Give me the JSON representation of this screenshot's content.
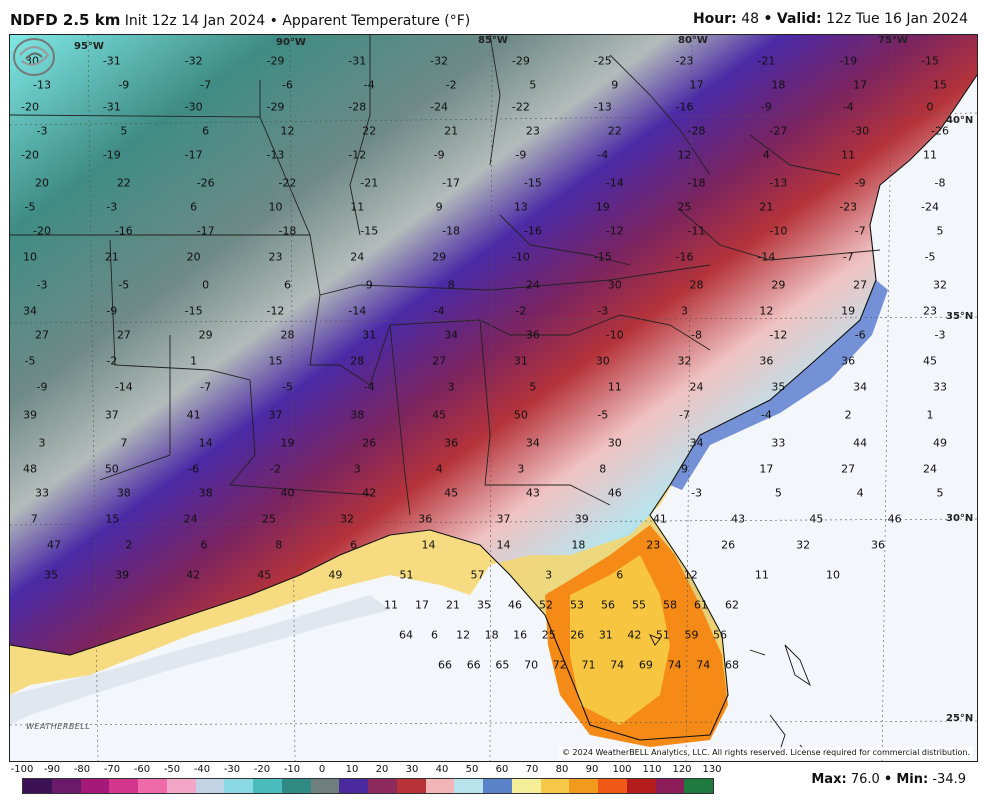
{
  "header": {
    "model": "NDFD 2.5 km",
    "init": "Init 12z 14 Jan 2024",
    "bullet": "•",
    "product": "Apparent Temperature (°F)",
    "hour_label": "Hour:",
    "hour": "48",
    "valid_label": "Valid:",
    "valid": "12z Tue 16 Jan 2024"
  },
  "map": {
    "lon_labels": [
      "95°W",
      "90°W",
      "85°W",
      "80°W",
      "75°W"
    ],
    "lat_labels": [
      "40°N",
      "35°N",
      "30°N",
      "25°N"
    ],
    "copyright": "© 2024 WeatherBELL Analytics, LLC. All rights reserved. License required for commercial distribution.",
    "logo_text": "WEATHERBELL",
    "values": [
      "-30",
      "-31",
      "-32",
      "-29",
      "-31",
      "-32",
      "-29",
      "-25",
      "-23",
      "-21",
      "-19",
      "-15",
      "-13",
      "-9",
      "-7",
      "-6",
      "-4",
      "-2",
      "5",
      "9",
      "17",
      "18",
      "17",
      "15",
      "-20",
      "-31",
      "-30",
      "-29",
      "-28",
      "-24",
      "-22",
      "-13",
      "-16",
      "-9",
      "-4",
      "0",
      "-3",
      "5",
      "6",
      "12",
      "22",
      "21",
      "23",
      "22",
      "-28",
      "-27",
      "-30",
      "-26",
      "-20",
      "-19",
      "-17",
      "-13",
      "-12",
      "-9",
      "-9",
      "-4",
      "12",
      "4",
      "11",
      "11",
      "20",
      "22",
      "-26",
      "-22",
      "-21",
      "-17",
      "-15",
      "-14",
      "-18",
      "-13",
      "-9",
      "-8",
      "-5",
      "-3",
      "6",
      "10",
      "11",
      "9",
      "13",
      "19",
      "25",
      "21",
      "-23",
      "-24",
      "-20",
      "-16",
      "-17",
      "-18",
      "-15",
      "-18",
      "-16",
      "-12",
      "-11",
      "-10",
      "-7",
      "5",
      "10",
      "21",
      "20",
      "23",
      "24",
      "29",
      "-10",
      "-15",
      "-16",
      "-14",
      "-7",
      "-5",
      "-3",
      "-5",
      "0",
      "6",
      "9",
      "8",
      "24",
      "30",
      "28",
      "29",
      "27",
      "32",
      "34",
      "-9",
      "-15",
      "-12",
      "-14",
      "-4",
      "-2",
      "-3",
      "3",
      "12",
      "19",
      "23",
      "27",
      "27",
      "29",
      "28",
      "31",
      "34",
      "36",
      "-10",
      "-8",
      "-12",
      "-6",
      "-3",
      "-5",
      "-2",
      "1",
      "15",
      "28",
      "27",
      "31",
      "30",
      "32",
      "36",
      "36",
      "45",
      "-9",
      "-14",
      "-7",
      "-5",
      "-4",
      "3",
      "5",
      "11",
      "24",
      "35",
      "34",
      "33",
      "39",
      "37",
      "41",
      "37",
      "38",
      "45",
      "50",
      "-5",
      "-7",
      "-4",
      "2",
      "1",
      "3",
      "7",
      "14",
      "19",
      "26",
      "36",
      "34",
      "30",
      "34",
      "33",
      "44",
      "49",
      "48",
      "50",
      "-6",
      "-2",
      "3",
      "4",
      "3",
      "8",
      "9",
      "17",
      "27",
      "24",
      "33",
      "38",
      "38",
      "40",
      "42",
      "45",
      "43",
      "46",
      "-3",
      "5",
      "4",
      "5",
      "7",
      "15",
      "24",
      "25",
      "32",
      "36",
      "37",
      "39",
      "41",
      "43",
      "45",
      "46",
      "47",
      "2",
      "6",
      "8",
      "6",
      "14",
      "14",
      "18",
      "23",
      "26",
      "32",
      "36",
      "35",
      "39",
      "42",
      "45",
      "49",
      "51",
      "57",
      "3",
      "6",
      "12",
      "11",
      "10",
      "11",
      "17",
      "21",
      "35",
      "46",
      "52",
      "53",
      "56",
      "55",
      "58",
      "61",
      "62",
      "64",
      "6",
      "12",
      "18",
      "16",
      "25",
      "26",
      "31",
      "42",
      "51",
      "59",
      "56",
      "66",
      "66",
      "65",
      "70",
      "72",
      "71",
      "74",
      "69",
      "74",
      "74",
      "68"
    ]
  },
  "legend": {
    "ticks": [
      "-100",
      "-90",
      "-80",
      "-70",
      "-60",
      "-50",
      "-40",
      "-30",
      "-20",
      "-10",
      "0",
      "10",
      "20",
      "30",
      "40",
      "50",
      "60",
      "70",
      "80",
      "90",
      "100",
      "110",
      "120",
      "130"
    ],
    "colors": [
      "#3d1156",
      "#6b1a6b",
      "#a4197a",
      "#d4368e",
      "#ee6aa8",
      "#f2a7c8",
      "#c3d3e6",
      "#8ad9e2",
      "#4bbcbc",
      "#2f8a84",
      "#6f7f7d",
      "#4b2aa0",
      "#8d2a5e",
      "#b8323a",
      "#f2b5b5",
      "#b9e3ec",
      "#5b83c9",
      "#f5ef9a",
      "#f6c84a",
      "#f29a1e",
      "#f05a16",
      "#b51d1d",
      "#8a1d5a",
      "#1e7a3e"
    ]
  },
  "stats": {
    "max_label": "Max:",
    "max": "76.0",
    "min_label": "Min:",
    "min": "-34.9",
    "bullet": "•"
  }
}
